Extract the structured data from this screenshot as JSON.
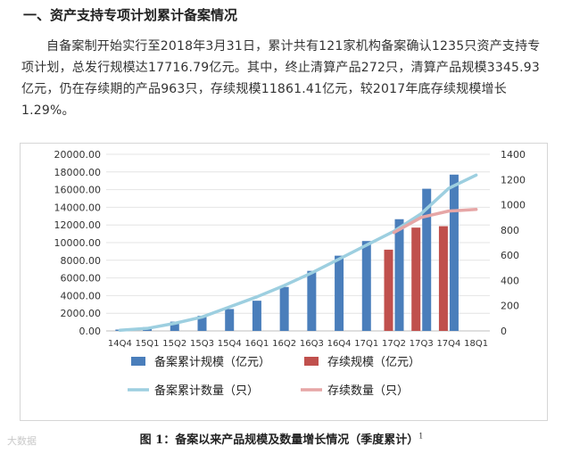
{
  "heading": "一、资产支持专项计划累计备案情况",
  "paragraph": "自备案制开始实行至2018年3月31日，累计共有121家机构备案确认1235只资产支持专项计划，总发行规模达17716.79亿元。其中，终止清算产品272只，清算产品规模3345.93亿元，仍在存续期的产品963只，存续规模11861.41亿元，较2017年底存续规模增长1.29%。",
  "caption": "图 1：备案以来产品规模及数量增长情况（季度累计）",
  "caption_sup": "1",
  "watermark": "大数据",
  "colors": {
    "bar_cumulative": "#4a7ebb",
    "bar_outstanding": "#c0504d",
    "line_cumulative": "#9dcfe0",
    "line_outstanding": "#e6a6a6"
  },
  "chart_data": {
    "type": "bar",
    "categories": [
      "14Q4",
      "15Q1",
      "15Q2",
      "15Q3",
      "15Q4",
      "16Q1",
      "16Q2",
      "16Q3",
      "16Q4",
      "17Q1",
      "17Q2",
      "17Q3",
      "17Q4",
      "18Q1"
    ],
    "y_left_ticks": [
      "0.00",
      "2000.00",
      "4000.00",
      "6000.00",
      "8000.00",
      "10000.00",
      "12000.00",
      "14000.00",
      "16000.00",
      "18000.00",
      "20000.00"
    ],
    "y_right_ticks": [
      "0",
      "200",
      "400",
      "600",
      "800",
      "1000",
      "1200",
      "1400"
    ],
    "ylim_left": [
      0,
      20000
    ],
    "ylim_right": [
      0,
      1400
    ],
    "series": [
      {
        "name": "备案累计规模（亿元）",
        "kind": "bar",
        "axis": "left",
        "values": [
          150,
          420,
          1050,
          1720,
          2480,
          3420,
          4980,
          6800,
          8520,
          10180,
          12650,
          16100,
          17700,
          null
        ]
      },
      {
        "name": "存续规模（亿元）",
        "kind": "bar",
        "axis": "left",
        "values": [
          null,
          null,
          null,
          null,
          null,
          null,
          null,
          null,
          null,
          null,
          9200,
          11700,
          11860,
          null
        ]
      },
      {
        "name": "备案累计数量（只）",
        "kind": "line",
        "axis": "right",
        "values": [
          5,
          20,
          60,
          110,
          190,
          270,
          360,
          460,
          570,
          680,
          790,
          930,
          1130,
          1235
        ]
      },
      {
        "name": "存续数量（只）",
        "kind": "line",
        "axis": "right",
        "values": [
          null,
          null,
          null,
          null,
          null,
          null,
          null,
          null,
          null,
          null,
          780,
          900,
          950,
          963
        ]
      }
    ],
    "legend": "bottom"
  }
}
